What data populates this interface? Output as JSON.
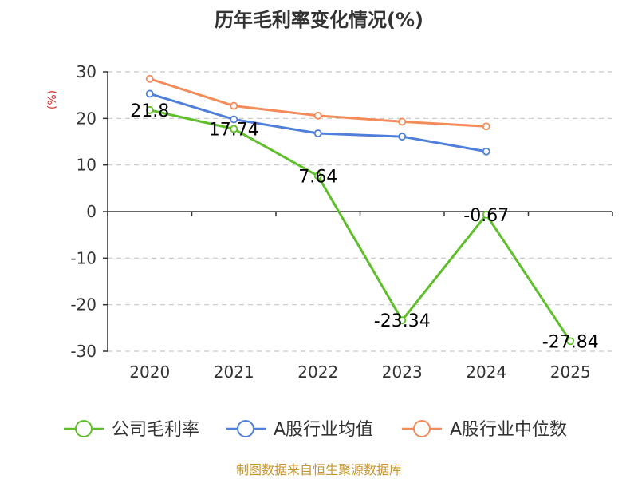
{
  "chart_data": {
    "type": "line",
    "title": "历年毛利率变化情况(%)",
    "ylabel": "(%)",
    "xlabel": "",
    "categories": [
      "2020",
      "2021",
      "2022",
      "2023",
      "2024",
      "2025"
    ],
    "y_ticks": [
      "30",
      "20",
      "10",
      "0",
      "-10",
      "-20",
      "-30"
    ],
    "ylim": [
      -30,
      30
    ],
    "grid": true,
    "legend_position": "bottom",
    "series": [
      {
        "name": "公司毛利率",
        "color": "#5fbf2a",
        "values": [
          21.8,
          17.74,
          7.64,
          -23.34,
          -0.67,
          -27.84
        ],
        "labels": [
          "21.8",
          "17.74",
          "7.64",
          "-23.34",
          "-0.67",
          "-27.84"
        ]
      },
      {
        "name": "A股行业均值",
        "color": "#4f7fd9",
        "values": [
          25.3,
          19.8,
          16.8,
          16.1,
          12.9,
          null
        ]
      },
      {
        "name": "A股行业中位数",
        "color": "#f48c5a",
        "values": [
          28.5,
          22.7,
          20.6,
          19.3,
          18.3,
          null
        ]
      }
    ],
    "source": "制图数据来自恒生聚源数据库"
  }
}
